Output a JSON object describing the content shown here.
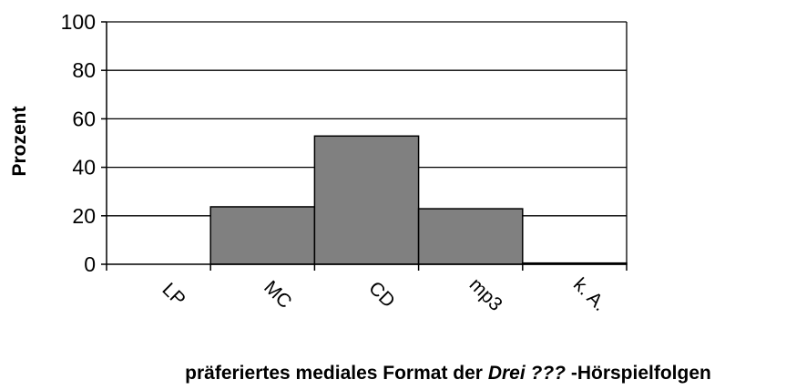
{
  "chart_data": {
    "type": "bar",
    "categories": [
      "LP",
      "MC",
      "CD",
      "mp3",
      "k. A."
    ],
    "values": [
      0,
      23.7,
      52.9,
      22.9,
      0.5
    ],
    "ylabel": "Prozent",
    "xlabel": {
      "prefix": "präferiertes mediales Format der",
      "emphasis": "Drei ???",
      "suffix": "-Hörspielfolgen"
    },
    "ylim": [
      0,
      100
    ],
    "yticks": [
      0,
      20,
      40,
      60,
      80,
      100
    ],
    "grid": true,
    "legend": "none",
    "colors": {
      "bar": "#808080",
      "bar_stroke": "#000000",
      "grid": "#000000",
      "axis": "#000000",
      "text": "#000000"
    }
  }
}
